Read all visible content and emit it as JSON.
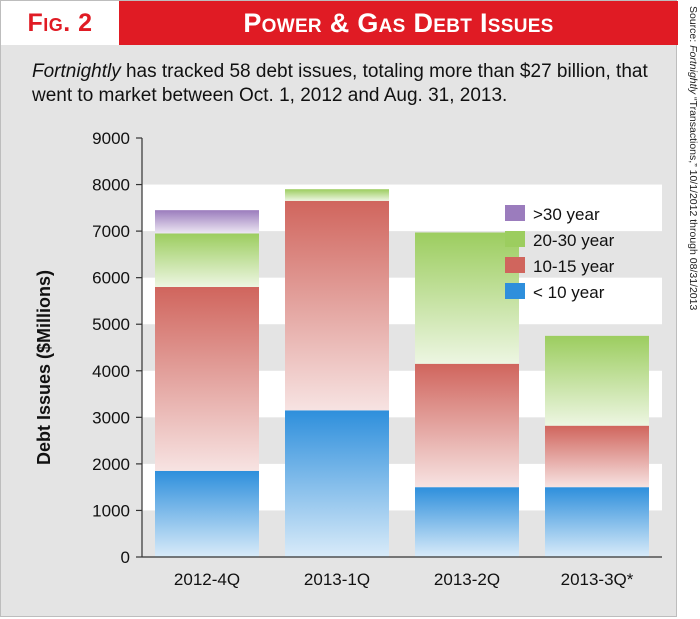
{
  "header": {
    "fig_label": "Fig. 2",
    "title": "Power & Gas Debt Issues"
  },
  "subtitle": {
    "emphasis": "Fortnightly",
    "text": " has tracked 58 debt issues, totaling more than $27 billion, that went to market between Oct. 1, 2012 and Aug. 31, 2013."
  },
  "source": {
    "prefix": "Source: ",
    "emphasis": "Fortnightly",
    "text": " “Transactions,” 10/1/2012 through 08/31/2013"
  },
  "colors": {
    "under_10": "#2e8fdc",
    "10_15": "#d0655d",
    "20_30": "#9ccd5f",
    "over_30": "#9b7cbd",
    "red_band": "#e01b24",
    "frame_bg": "#e4e4e4"
  },
  "chart_data": {
    "type": "bar",
    "stacked": true,
    "title": "",
    "xlabel": "",
    "ylabel": "Debt Issues ($Millions)",
    "ylim": [
      0,
      9000
    ],
    "yticks": [
      0,
      1000,
      2000,
      3000,
      4000,
      5000,
      6000,
      7000,
      8000,
      9000
    ],
    "grid": "horizontal bands",
    "legend_position": "top-right",
    "categories": [
      "2012-4Q",
      "2013-1Q",
      "2013-2Q",
      "2013-3Q*"
    ],
    "series": [
      {
        "name": "< 10 year",
        "color": "#2e8fdc",
        "values": [
          1850,
          3150,
          1500,
          1500
        ]
      },
      {
        "name": "10-15 year",
        "color": "#d0655d",
        "values": [
          3950,
          4500,
          2650,
          1320
        ]
      },
      {
        "name": "20-30 year",
        "color": "#9ccd5f",
        "values": [
          1150,
          250,
          2820,
          1930
        ]
      },
      {
        "name": ">30 year",
        "color": "#9b7cbd",
        "values": [
          500,
          0,
          0,
          0
        ]
      }
    ],
    "legend_order": [
      ">30 year",
      "20-30 year",
      "10-15 year",
      "< 10 year"
    ]
  }
}
